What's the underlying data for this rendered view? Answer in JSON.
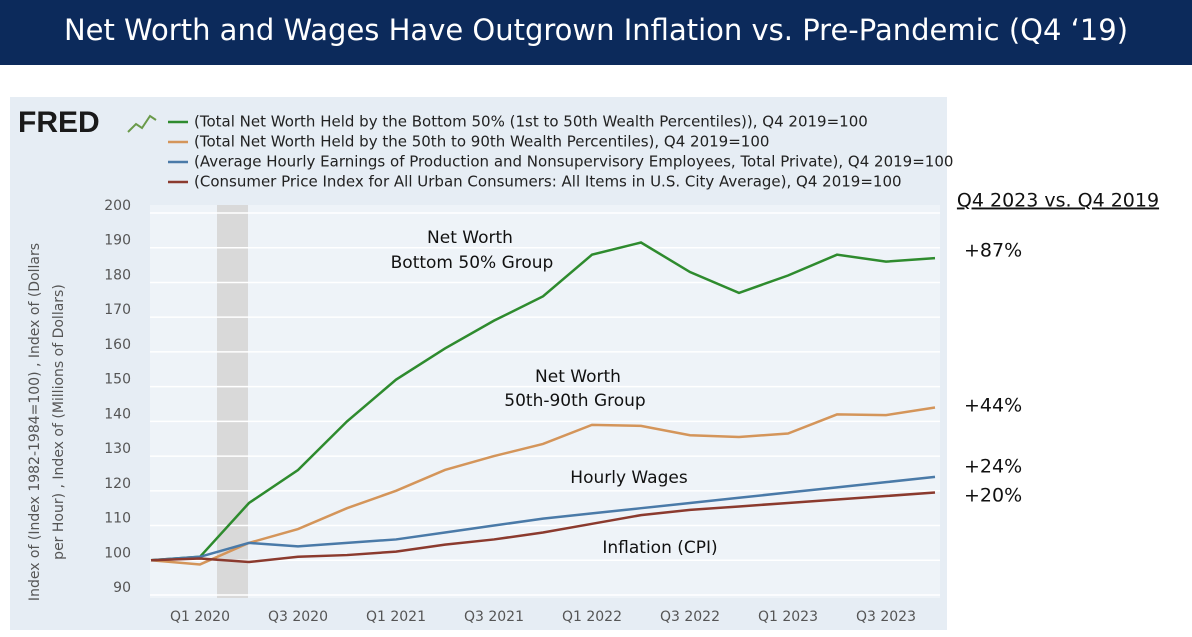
{
  "chart_data": {
    "type": "line",
    "title": "Net Worth and Wages Have Outgrown Inflation vs. Pre-Pandemic (Q4 ‘19)",
    "logo": "FRED",
    "ylabel_lines": [
      "Index of (Index 1982-1984=100) , Index of (Dollars",
      "per Hour) , Index of (Millions of Dollars)"
    ],
    "categories": [
      null,
      "Q1 2020",
      null,
      "Q3 2020",
      null,
      "Q1 2021",
      null,
      "Q3 2021",
      null,
      "Q1 2022",
      null,
      "Q3 2022",
      null,
      "Q1 2023",
      null,
      "Q3 2023",
      null
    ],
    "ylim": [
      90,
      200
    ],
    "yticks": [
      90,
      100,
      110,
      120,
      130,
      140,
      150,
      160,
      170,
      180,
      190,
      200
    ],
    "grid": true,
    "series": [
      {
        "name": "(Total Net Worth Held by the Bottom 50% (1st to 50th Wealth Percentiles)), Q4 2019=100",
        "color": "#2e8b2e",
        "values": [
          100,
          101,
          116.5,
          126,
          140,
          152,
          161,
          169,
          176,
          188,
          191.5,
          183,
          177,
          182,
          188,
          186,
          187
        ]
      },
      {
        "name": "(Total Net Worth Held by the 50th to 90th Wealth Percentiles), Q4 2019=100",
        "color": "#d4955a",
        "values": [
          100,
          98.8,
          105,
          109,
          115,
          120,
          126,
          130,
          133.5,
          139,
          138.7,
          136,
          135.5,
          136.5,
          142,
          141.8,
          144
        ]
      },
      {
        "name": "(Average Hourly Earnings of Production and Nonsupervisory Employees, Total Private), Q4 2019=100",
        "color": "#4a7aa8",
        "values": [
          100,
          101,
          105,
          104,
          105,
          106,
          108,
          110,
          112,
          113.5,
          115,
          116.5,
          118,
          119.5,
          121,
          122.5,
          124
        ]
      },
      {
        "name": "(Consumer Price Index for All Urban Consumers: All Items in U.S. City Average), Q4 2019=100",
        "color": "#8b3a2e",
        "values": [
          100,
          100.5,
          99.5,
          101,
          101.5,
          102.5,
          104.5,
          106,
          108,
          110.5,
          113,
          114.5,
          115.5,
          116.5,
          117.5,
          118.5,
          119.5
        ]
      }
    ],
    "annotations": [
      "Net Worth",
      "Bottom 50% Group",
      "Net Worth",
      "50th-90th  Group",
      "Hourly Wages",
      "Inflation (CPI)"
    ],
    "comparison": {
      "title": "Q4 2023 vs. Q4 2019",
      "labels": [
        "+87%",
        "+44%",
        "+24%",
        "+20%"
      ]
    }
  }
}
